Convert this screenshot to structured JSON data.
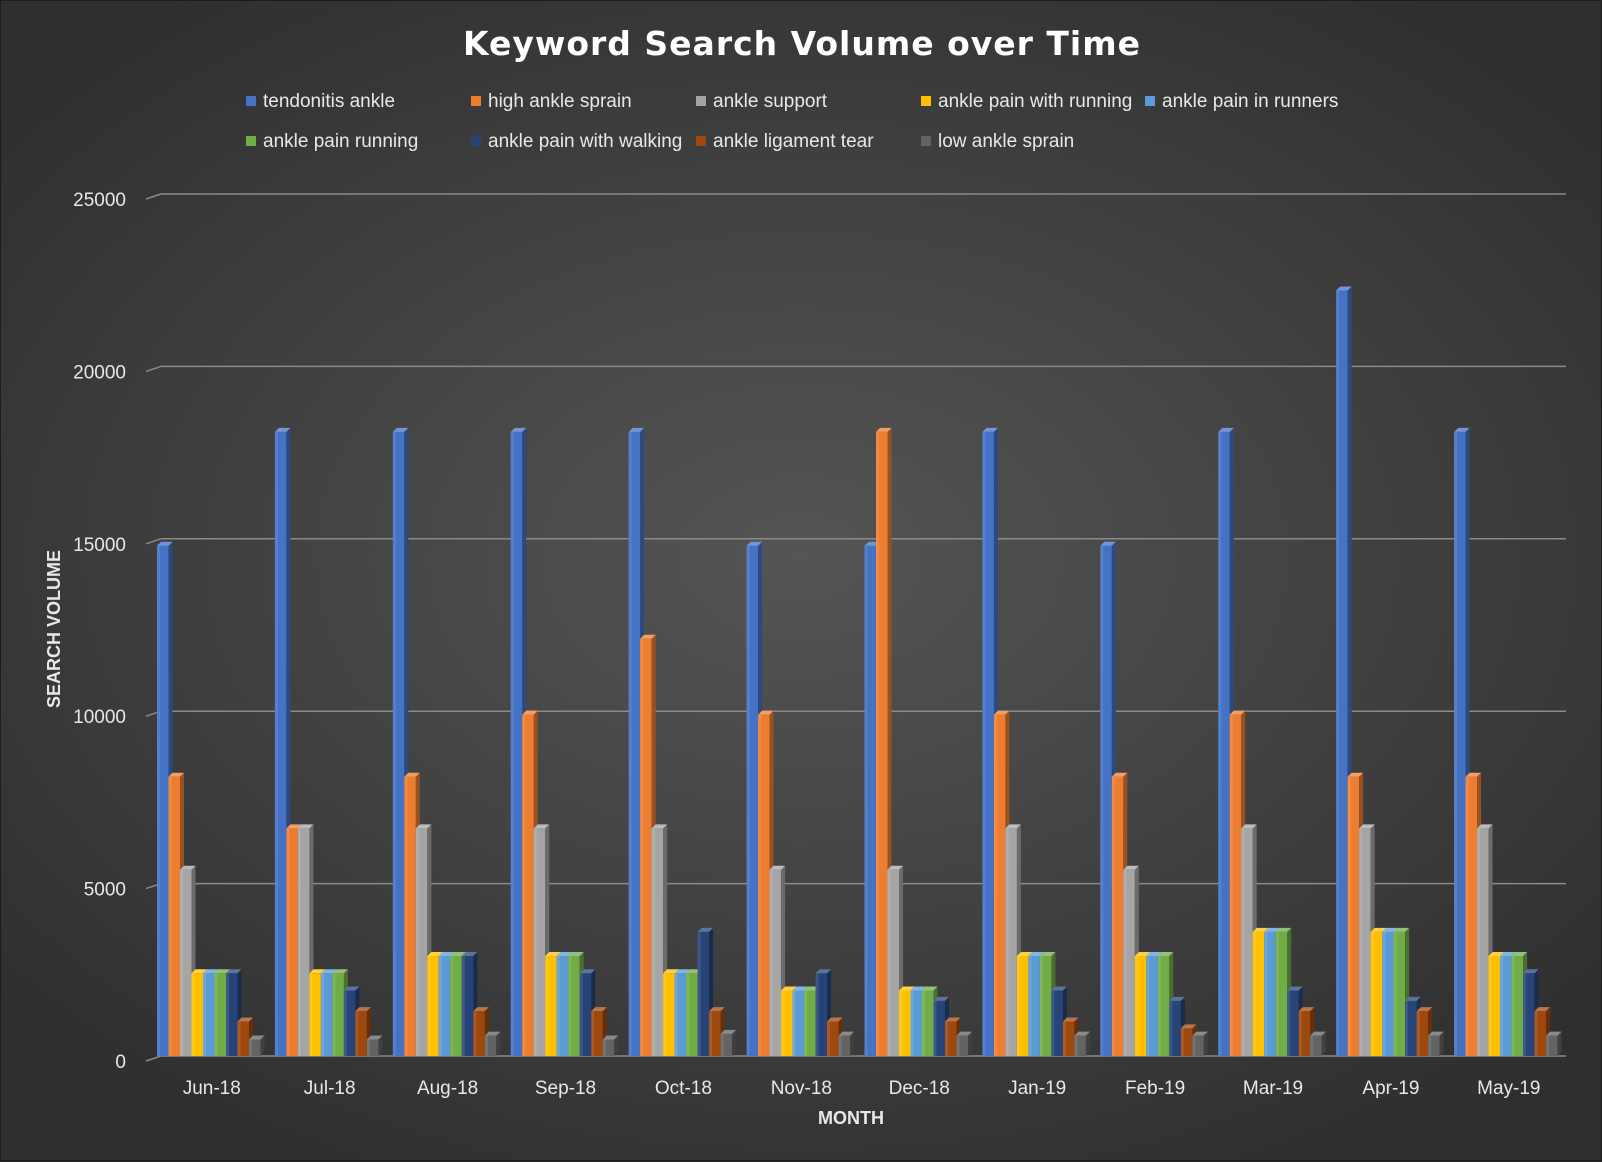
{
  "chart_data": {
    "type": "bar",
    "title": "Keyword Search Volume over Time",
    "xlabel": "MONTH",
    "ylabel": "SEARCH VOLUME",
    "ylim": [
      0,
      25000
    ],
    "yticks": [
      0,
      5000,
      10000,
      15000,
      20000,
      25000
    ],
    "grid": true,
    "legend_position": "top",
    "categories": [
      "Jun-18",
      "Jul-18",
      "Aug-18",
      "Sep-18",
      "Oct-18",
      "Nov-18",
      "Dec-18",
      "Jan-19",
      "Feb-19",
      "Mar-19",
      "Apr-19",
      "May-19"
    ],
    "series": [
      {
        "name": "tendonitis ankle",
        "color": "#4472C4",
        "values": [
          14800,
          18100,
          18100,
          18100,
          18100,
          14800,
          14800,
          18100,
          14800,
          18100,
          22200,
          18100
        ]
      },
      {
        "name": "high ankle sprain",
        "color": "#ED7D31",
        "values": [
          8100,
          6600,
          8100,
          9900,
          12100,
          9900,
          18100,
          9900,
          8100,
          9900,
          8100,
          8100
        ]
      },
      {
        "name": "ankle support",
        "color": "#A5A5A5",
        "values": [
          5400,
          6600,
          6600,
          6600,
          6600,
          5400,
          5400,
          6600,
          5400,
          6600,
          6600,
          6600
        ]
      },
      {
        "name": "ankle pain with running",
        "color": "#FFC000",
        "values": [
          2400,
          2400,
          2900,
          2900,
          2400,
          1900,
          1900,
          2900,
          2900,
          3600,
          3600,
          2900
        ]
      },
      {
        "name": "ankle pain in runners",
        "color": "#5B9BD5",
        "values": [
          2400,
          2400,
          2900,
          2900,
          2400,
          1900,
          1900,
          2900,
          2900,
          3600,
          3600,
          2900
        ]
      },
      {
        "name": "ankle pain running",
        "color": "#70AD47",
        "values": [
          2400,
          2400,
          2900,
          2900,
          2400,
          1900,
          1900,
          2900,
          2900,
          3600,
          3600,
          2900
        ]
      },
      {
        "name": "ankle pain with walking",
        "color": "#264478",
        "values": [
          2400,
          1900,
          2900,
          2400,
          3600,
          2400,
          1600,
          1900,
          1600,
          1900,
          1600,
          2400
        ]
      },
      {
        "name": "ankle ligament tear",
        "color": "#9E480E",
        "values": [
          1000,
          1300,
          1300,
          1300,
          1300,
          1000,
          1000,
          1000,
          800,
          1300,
          1300,
          1300
        ]
      },
      {
        "name": "low ankle sprain",
        "color": "#636363",
        "values": [
          480,
          480,
          590,
          480,
          640,
          590,
          590,
          590,
          590,
          590,
          590,
          590
        ]
      }
    ]
  }
}
